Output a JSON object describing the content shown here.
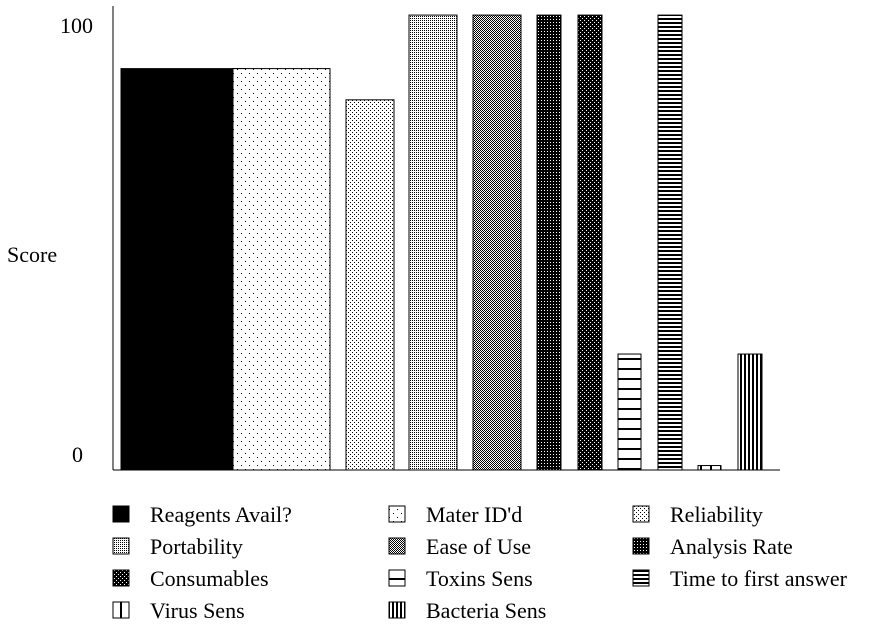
{
  "chart_data": {
    "type": "bar",
    "ylabel": "Score",
    "ylim": [
      0,
      100
    ],
    "yticks": [
      0,
      100
    ],
    "grid": false,
    "legend_position": "bottom",
    "series": [
      {
        "name": "Reagents Avail?",
        "value": 90,
        "pattern": "solid"
      },
      {
        "name": "Mater ID'd",
        "value": 90,
        "pattern": "dots-sparse"
      },
      {
        "name": "Reliability",
        "value": 83,
        "pattern": "dots-medium"
      },
      {
        "name": "Portability",
        "value": 102,
        "pattern": "dots-dense"
      },
      {
        "name": "Ease of Use",
        "value": 102,
        "pattern": "checker-fine"
      },
      {
        "name": "Analysis Rate",
        "value": 102,
        "pattern": "checker-dark"
      },
      {
        "name": "Consumables",
        "value": 102,
        "pattern": "checker-bold"
      },
      {
        "name": "Toxins Sens",
        "value": 26,
        "pattern": "hlines-sparse"
      },
      {
        "name": "Time to first answer",
        "value": 102,
        "pattern": "hlines-dense"
      },
      {
        "name": "Virus Sens",
        "value": 1,
        "pattern": "vlines-sparse"
      },
      {
        "name": "Bacteria Sens",
        "value": 26,
        "pattern": "vlines-dense"
      }
    ]
  }
}
